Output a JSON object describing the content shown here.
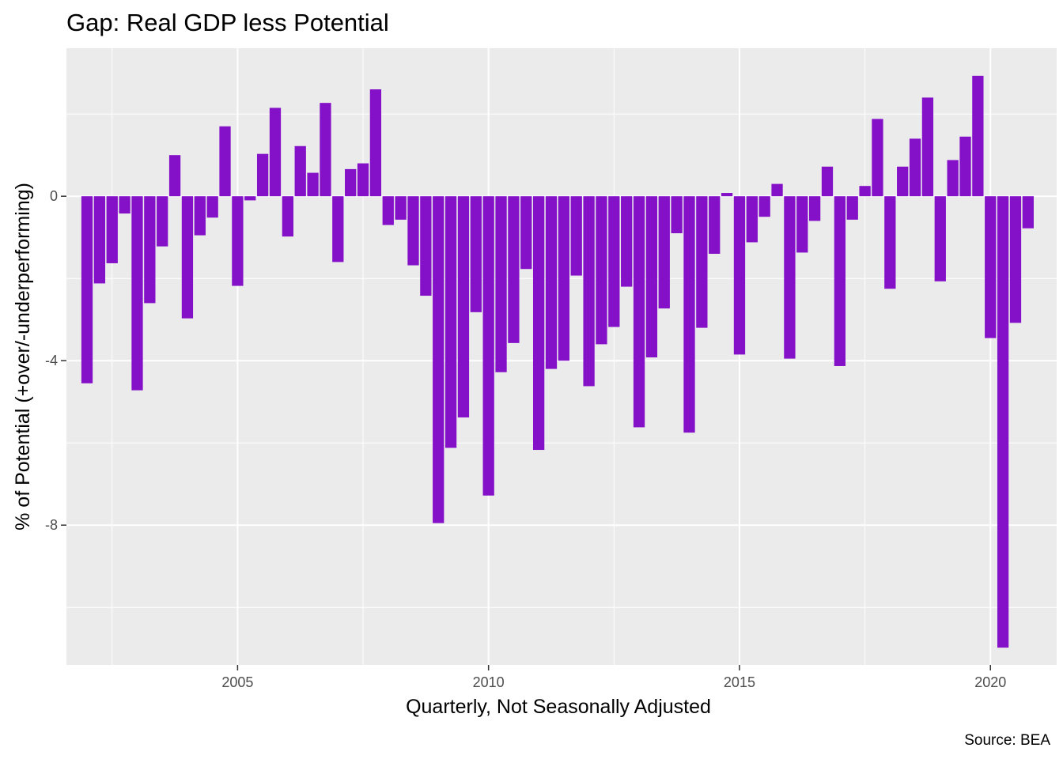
{
  "chart_data": {
    "type": "bar",
    "title": "Gap: Real GDP less Potential",
    "xlabel": "Quarterly, Not Seasonally Adjusted",
    "ylabel": "% of Potential (+over/-underperforming)",
    "caption": "Source: BEA",
    "bar_color": "#8410c8",
    "panel_background": "#ebebeb",
    "grid": true,
    "xlim": [
      2001.59,
      2021.32
    ],
    "ylim": [
      -11.4,
      3.6
    ],
    "x_ticks": [
      {
        "value": 2005,
        "label": "2005"
      },
      {
        "value": 2010,
        "label": "2010"
      },
      {
        "value": 2015,
        "label": "2015"
      },
      {
        "value": 2020,
        "label": "2020"
      }
    ],
    "y_ticks": [
      {
        "value": 0,
        "label": "0"
      },
      {
        "value": -4,
        "label": "-4"
      },
      {
        "value": -8,
        "label": "-8"
      }
    ],
    "start_year": 2002,
    "start_quarter": 1,
    "values": [
      -4.55,
      -2.12,
      -1.63,
      -0.42,
      -4.72,
      -2.6,
      -1.22,
      1.0,
      -2.97,
      -0.95,
      -0.52,
      1.7,
      -2.18,
      -0.1,
      1.03,
      2.15,
      -0.98,
      1.22,
      0.57,
      2.27,
      -1.6,
      0.66,
      0.8,
      2.6,
      -0.7,
      -0.57,
      -1.68,
      -2.42,
      -7.95,
      -6.12,
      -5.38,
      -2.82,
      -7.28,
      -4.28,
      -3.57,
      -1.77,
      -6.17,
      -4.2,
      -4.0,
      -1.93,
      -4.62,
      -3.6,
      -3.18,
      -2.2,
      -5.62,
      -3.92,
      -2.73,
      -0.9,
      -5.75,
      -3.2,
      -1.4,
      0.08,
      -3.85,
      -1.12,
      -0.5,
      0.3,
      -3.95,
      -1.37,
      -0.6,
      0.72,
      -4.13,
      -0.57,
      0.25,
      1.88,
      -2.25,
      0.72,
      1.4,
      2.4,
      -2.07,
      0.88,
      1.45,
      2.93,
      -3.45,
      -10.98,
      -3.08,
      -0.78
    ]
  }
}
